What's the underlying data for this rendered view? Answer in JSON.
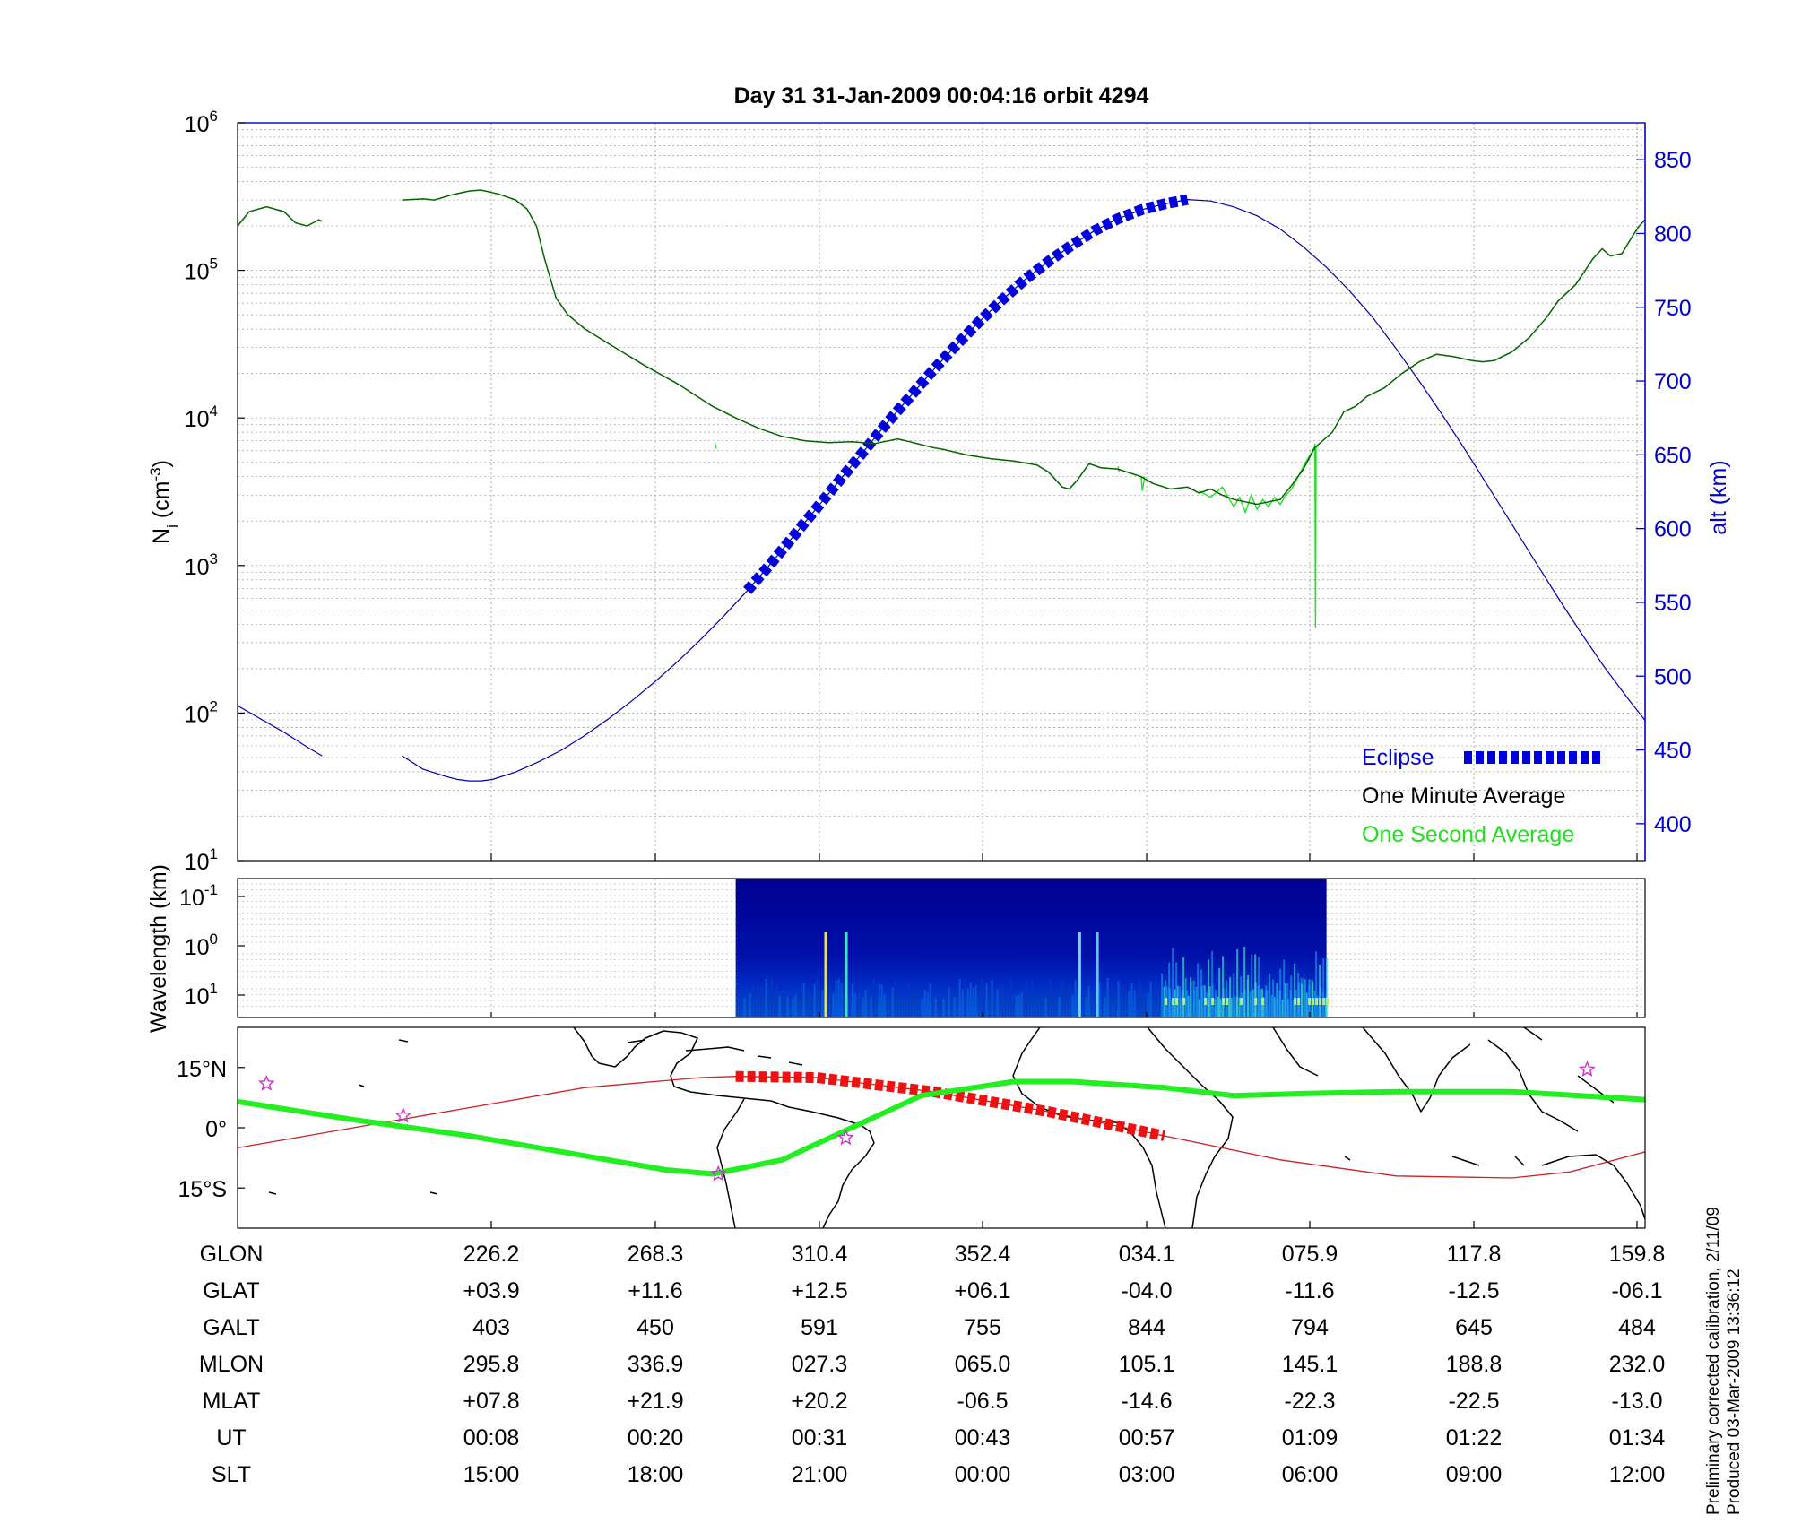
{
  "title": "Day 31  31-Jan-2009 00:04:16   orbit 4294",
  "footer_note": [
    "Preliminary corrected calibration, 2/11/09",
    "Produced 03-Mar-2009 13:36:12"
  ],
  "chart_data": [
    {
      "type": "line",
      "panel": "ion-density-altitude",
      "ylabel": "N_i (cm^-3)",
      "ylabel_right": "alt (km)",
      "ylim": [
        10,
        1000000
      ],
      "yscale": "log",
      "yticks_left": [
        {
          "base": "10",
          "exp": "1"
        },
        {
          "base": "10",
          "exp": "2"
        },
        {
          "base": "10",
          "exp": "3"
        },
        {
          "base": "10",
          "exp": "4"
        },
        {
          "base": "10",
          "exp": "5"
        },
        {
          "base": "10",
          "exp": "6"
        }
      ],
      "ylim_right": [
        375,
        875
      ],
      "yticks_right": [
        "400",
        "450",
        "500",
        "550",
        "600",
        "650",
        "700",
        "750",
        "800",
        "850"
      ],
      "grid": true,
      "legend": [
        "Eclipse",
        "One Minute Average",
        "One Second Average"
      ],
      "legend_position": "bottom-right",
      "x_range_ut_min": [
        0,
        100
      ],
      "series": [
        {
          "name": "One Minute Average",
          "color": "#006400",
          "points": [
            [
              0,
              200000
            ],
            [
              1,
              250000
            ],
            [
              2.5,
              270000
            ],
            [
              4,
              250000
            ],
            [
              5,
              210000
            ],
            [
              6,
              200000
            ],
            [
              7,
              220000
            ],
            [
              7.3,
              215000
            ],
            [
              null,
              null
            ],
            [
              14.2,
              300000
            ],
            [
              16,
              305000
            ],
            [
              17,
              300000
            ],
            [
              18.5,
              325000
            ],
            [
              20,
              345000
            ],
            [
              21,
              350000
            ],
            [
              22.5,
              330000
            ],
            [
              24,
              300000
            ],
            [
              25,
              260000
            ],
            [
              25.8,
              200000
            ],
            [
              26.5,
              120000
            ],
            [
              27.5,
              65000
            ],
            [
              28.5,
              50000
            ],
            [
              30,
              40000
            ],
            [
              32,
              32000
            ],
            [
              35,
              23000
            ],
            [
              38,
              17000
            ],
            [
              41,
              12000
            ],
            [
              43,
              10000
            ],
            [
              45,
              8500
            ],
            [
              47,
              7500
            ],
            [
              49,
              7000
            ],
            [
              51,
              6800
            ],
            [
              53,
              6900
            ],
            [
              55,
              6700
            ],
            [
              57,
              7200
            ],
            [
              58,
              6900
            ],
            [
              60,
              6300
            ],
            [
              61,
              6100
            ],
            [
              63,
              5600
            ],
            [
              65,
              5300
            ],
            [
              67,
              5100
            ],
            [
              69,
              4800
            ],
            [
              70,
              4300
            ],
            [
              71.2,
              3400
            ],
            [
              71.8,
              3300
            ],
            [
              72.5,
              3800
            ],
            [
              73.5,
              4900
            ],
            [
              74.5,
              4600
            ],
            [
              76,
              4500
            ],
            [
              78,
              4000
            ],
            [
              79,
              3600
            ],
            [
              80.5,
              3300
            ],
            [
              82,
              3400
            ],
            [
              83,
              3100
            ],
            [
              84,
              3300
            ],
            [
              85,
              3000
            ],
            [
              86,
              2800
            ],
            [
              87,
              2700
            ],
            [
              88,
              2600
            ],
            [
              89,
              2700
            ],
            [
              90,
              2800
            ],
            [
              91,
              3500
            ],
            [
              92,
              4500
            ],
            [
              93,
              6300
            ],
            [
              94.5,
              8000
            ],
            [
              95.5,
              11000
            ],
            [
              96.5,
              12000
            ],
            [
              97.5,
              14000
            ],
            [
              99,
              16000
            ],
            [
              100.5,
              20000
            ],
            [
              102,
              24000
            ],
            [
              103.5,
              27000
            ],
            [
              105,
              26000
            ],
            [
              106.5,
              24500
            ],
            [
              107.5,
              24000
            ],
            [
              108.5,
              24500
            ],
            [
              110,
              28000
            ],
            [
              111.5,
              35000
            ],
            [
              113,
              48000
            ],
            [
              114,
              62000
            ],
            [
              115.5,
              80000
            ],
            [
              117,
              120000
            ],
            [
              117.8,
              140000
            ],
            [
              118.5,
              125000
            ],
            [
              119.5,
              130000
            ],
            [
              120.5,
              175000
            ],
            [
              121,
              200000
            ],
            [
              121.5,
              220000
            ]
          ]
        },
        {
          "name": "One Second Average",
          "color": "#22dd22",
          "points": [
            [
              83,
              3200
            ],
            [
              84,
              2900
            ],
            [
              85,
              3400
            ],
            [
              86,
              2500
            ],
            [
              86.5,
              2900
            ],
            [
              87,
              2300
            ],
            [
              87.5,
              3000
            ],
            [
              88,
              2400
            ],
            [
              88.5,
              2800
            ],
            [
              89,
              2500
            ],
            [
              89.5,
              2900
            ],
            [
              90,
              2600
            ],
            [
              90.5,
              3000
            ],
            [
              91,
              3300
            ],
            [
              92,
              4700
            ],
            [
              93,
              6400
            ],
            [
              93.3,
              6400
            ],
            [
              null,
              null
            ],
            [
              41.2,
              6900
            ],
            [
              41.3,
              6200
            ],
            [
              null,
              null
            ],
            [
              76,
              4700
            ],
            [
              76.1,
              4300
            ],
            [
              null,
              null
            ],
            [
              78,
              4000
            ],
            [
              78.1,
              3200
            ],
            [
              78.3,
              4000
            ],
            [
              null,
              null
            ],
            [
              93.0,
              6700
            ],
            [
              93.05,
              380
            ],
            [
              93.1,
              6400
            ]
          ]
        },
        {
          "name": "altitude",
          "color": "#0000aa",
          "axis": "right",
          "points": [
            [
              0,
              480
            ],
            [
              2,
              471
            ],
            [
              4,
              462
            ],
            [
              6,
              452
            ],
            [
              7.3,
              446
            ],
            [
              null,
              null
            ],
            [
              14.2,
              446
            ],
            [
              16,
              437
            ],
            [
              18,
              432
            ],
            [
              19,
              430
            ],
            [
              20,
              429
            ],
            [
              21,
              429
            ],
            [
              22,
              430
            ],
            [
              24,
              435
            ],
            [
              26,
              442
            ],
            [
              28,
              450
            ],
            [
              30,
              460
            ],
            [
              32,
              471
            ],
            [
              34,
              483
            ],
            [
              36,
              496
            ],
            [
              38,
              510
            ],
            [
              40,
              525
            ],
            [
              42,
              541
            ],
            [
              44,
              558
            ],
            [
              46,
              576
            ],
            [
              48,
              595
            ],
            [
              50,
              614
            ],
            [
              52,
              633
            ],
            [
              54,
              652
            ],
            [
              56,
              671
            ],
            [
              58,
              689
            ],
            [
              60,
              707
            ],
            [
              62,
              724
            ],
            [
              64,
              740
            ],
            [
              66,
              755
            ],
            [
              68,
              769
            ],
            [
              70,
              781
            ],
            [
              72,
              792
            ],
            [
              74,
              802
            ],
            [
              76,
              810
            ],
            [
              78,
              816
            ],
            [
              80,
              820
            ],
            [
              82,
              823
            ],
            [
              84,
              822
            ],
            [
              86,
              818
            ],
            [
              88,
              812
            ],
            [
              90,
              803
            ],
            [
              92,
              791
            ],
            [
              94,
              777
            ],
            [
              96,
              761
            ],
            [
              98,
              743
            ],
            [
              100,
              722
            ],
            [
              102,
              700
            ],
            [
              104,
              677
            ],
            [
              106,
              653
            ],
            [
              108,
              628
            ],
            [
              110,
              603
            ],
            [
              112,
              578
            ],
            [
              114,
              553
            ],
            [
              116,
              529
            ],
            [
              118,
              506
            ],
            [
              120,
              485
            ],
            [
              121.5,
              470
            ]
          ]
        },
        {
          "name": "Eclipse",
          "color": "#0000dd",
          "axis": "right",
          "x_start": 43,
          "x_end": 82.5
        }
      ]
    },
    {
      "type": "heatmap",
      "panel": "spectrogram",
      "ylabel": "Wavelength (km)",
      "yticks": [
        {
          "base": "10",
          "exp": "-1"
        },
        {
          "base": "10",
          "exp": "0"
        },
        {
          "base": "10",
          "exp": "1"
        }
      ],
      "x_start": 43,
      "x_end": 94,
      "colormap": "jet"
    },
    {
      "type": "line",
      "panel": "ground-track-map",
      "yticks": [
        "15°N",
        "0°",
        "15°S"
      ],
      "ylim": [
        -25,
        25
      ],
      "series": [
        {
          "name": "satellite track",
          "color": "#cc2222",
          "points": [
            [
              0,
              -5
            ],
            [
              10,
              0
            ],
            [
              20,
              5
            ],
            [
              30,
              10
            ],
            [
              40,
              12.5
            ],
            [
              43,
              12.8
            ],
            [
              50,
              12.5
            ],
            [
              60,
              9
            ],
            [
              70,
              4
            ],
            [
              80,
              -2
            ],
            [
              90,
              -8
            ],
            [
              100,
              -12
            ],
            [
              110,
              -12.5
            ],
            [
              115,
              -11
            ],
            [
              121.5,
              -6
            ]
          ]
        },
        {
          "name": "eclipse track",
          "color": "#ee1111",
          "x_start": 43,
          "x_end": 82.5
        },
        {
          "name": "magnetic equator",
          "color": "#22ee22",
          "points": [
            [
              0,
              6.5
            ],
            [
              10,
              2
            ],
            [
              20,
              -2
            ],
            [
              30,
              -7
            ],
            [
              37,
              -10.5
            ],
            [
              41,
              -11.5
            ],
            [
              47,
              -8
            ],
            [
              53,
              0
            ],
            [
              59,
              8
            ],
            [
              67,
              11.5
            ],
            [
              72,
              11.5
            ],
            [
              80,
              10
            ],
            [
              86,
              8
            ],
            [
              92,
              8.5
            ],
            [
              100,
              9
            ],
            [
              110,
              9
            ],
            [
              121.5,
              7
            ]
          ]
        }
      ],
      "markers": [
        {
          "symbol": "star",
          "color": "#cc33cc",
          "points": [
            [
              2.5,
              11
            ],
            [
              14.3,
              3
            ],
            [
              41.5,
              -11.5
            ],
            [
              52.5,
              -2.5
            ],
            [
              116.5,
              14.5
            ]
          ]
        }
      ]
    }
  ],
  "table": {
    "row_labels": [
      "GLON",
      "GLAT",
      "GALT",
      "MLON",
      "MLAT",
      "UT",
      "SLT"
    ],
    "columns": [
      [
        "226.2",
        "+03.9",
        "403",
        "295.8",
        "+07.8",
        "00:08",
        "15:00"
      ],
      [
        "268.3",
        "+11.6",
        "450",
        "336.9",
        "+21.9",
        "00:20",
        "18:00"
      ],
      [
        "310.4",
        "+12.5",
        "591",
        "027.3",
        "+20.2",
        "00:31",
        "21:00"
      ],
      [
        "352.4",
        "+06.1",
        "755",
        "065.0",
        "-06.5",
        "00:43",
        "00:00"
      ],
      [
        "034.1",
        "-04.0",
        "844",
        "105.1",
        "-14.6",
        "00:57",
        "03:00"
      ],
      [
        "075.9",
        "-11.6",
        "794",
        "145.1",
        "-22.3",
        "01:09",
        "06:00"
      ],
      [
        "117.8",
        "-12.5",
        "645",
        "188.8",
        "-22.5",
        "01:22",
        "09:00"
      ],
      [
        "159.8",
        "-06.1",
        "484",
        "232.0",
        "-13.0",
        "01:34",
        "12:00"
      ]
    ]
  },
  "colors": {
    "axis": "#000000",
    "right_axis": "#0000cc",
    "legend_eclipse": "#0000dd",
    "legend_one_second": "#22dd22",
    "coastline": "#000000"
  }
}
